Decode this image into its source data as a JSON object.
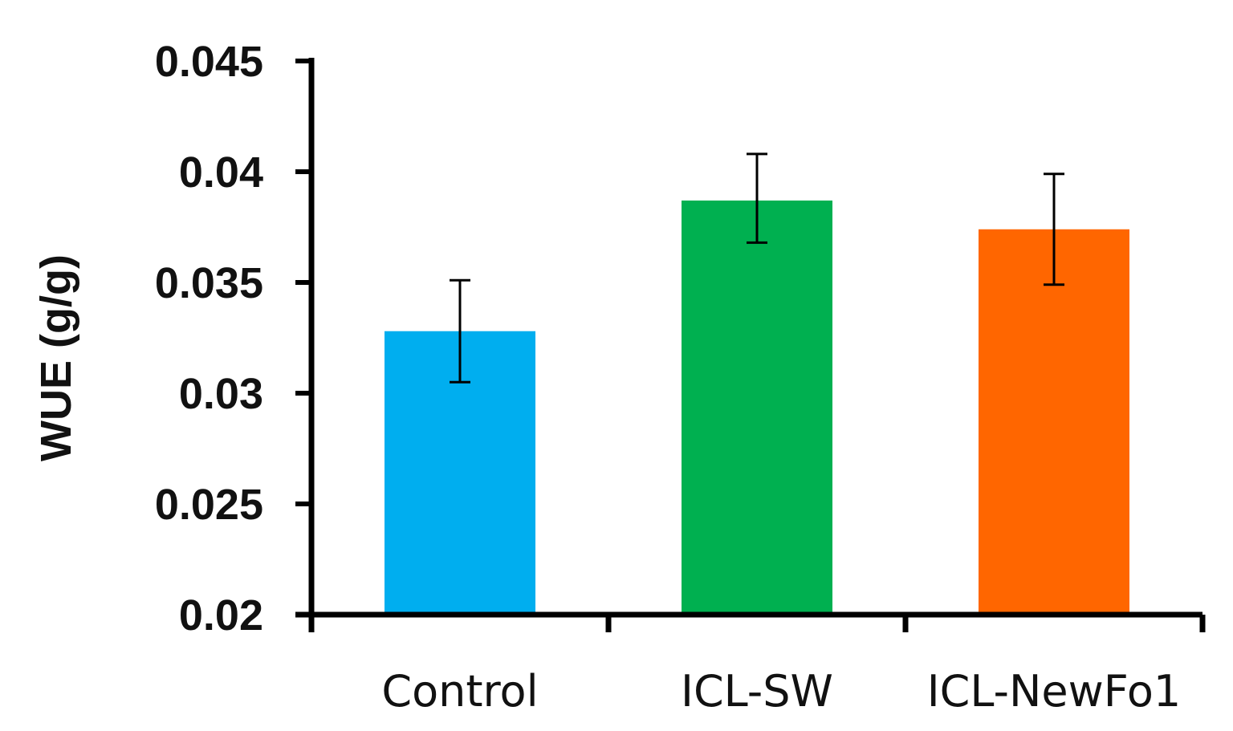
{
  "chart_data": {
    "type": "bar",
    "title": "",
    "xlabel": "",
    "ylabel": "WUE (g/g)",
    "ylim": [
      0.02,
      0.045
    ],
    "yticks": [
      0.02,
      0.025,
      0.03,
      0.035,
      0.04,
      0.045
    ],
    "ytick_labels": [
      "0.02",
      "0.025",
      "0.03",
      "0.035",
      "0.04",
      "0.045"
    ],
    "categories": [
      "Control",
      "ICL-SW",
      "ICL-NewFo1"
    ],
    "values": [
      0.0328,
      0.0387,
      0.0374
    ],
    "error_low": [
      0.0305,
      0.0368,
      0.0349
    ],
    "error_high": [
      0.0351,
      0.0408,
      0.0399
    ],
    "colors": [
      "#00AEEF",
      "#00B050",
      "#FF6600"
    ],
    "grid": false,
    "legend": "none"
  }
}
